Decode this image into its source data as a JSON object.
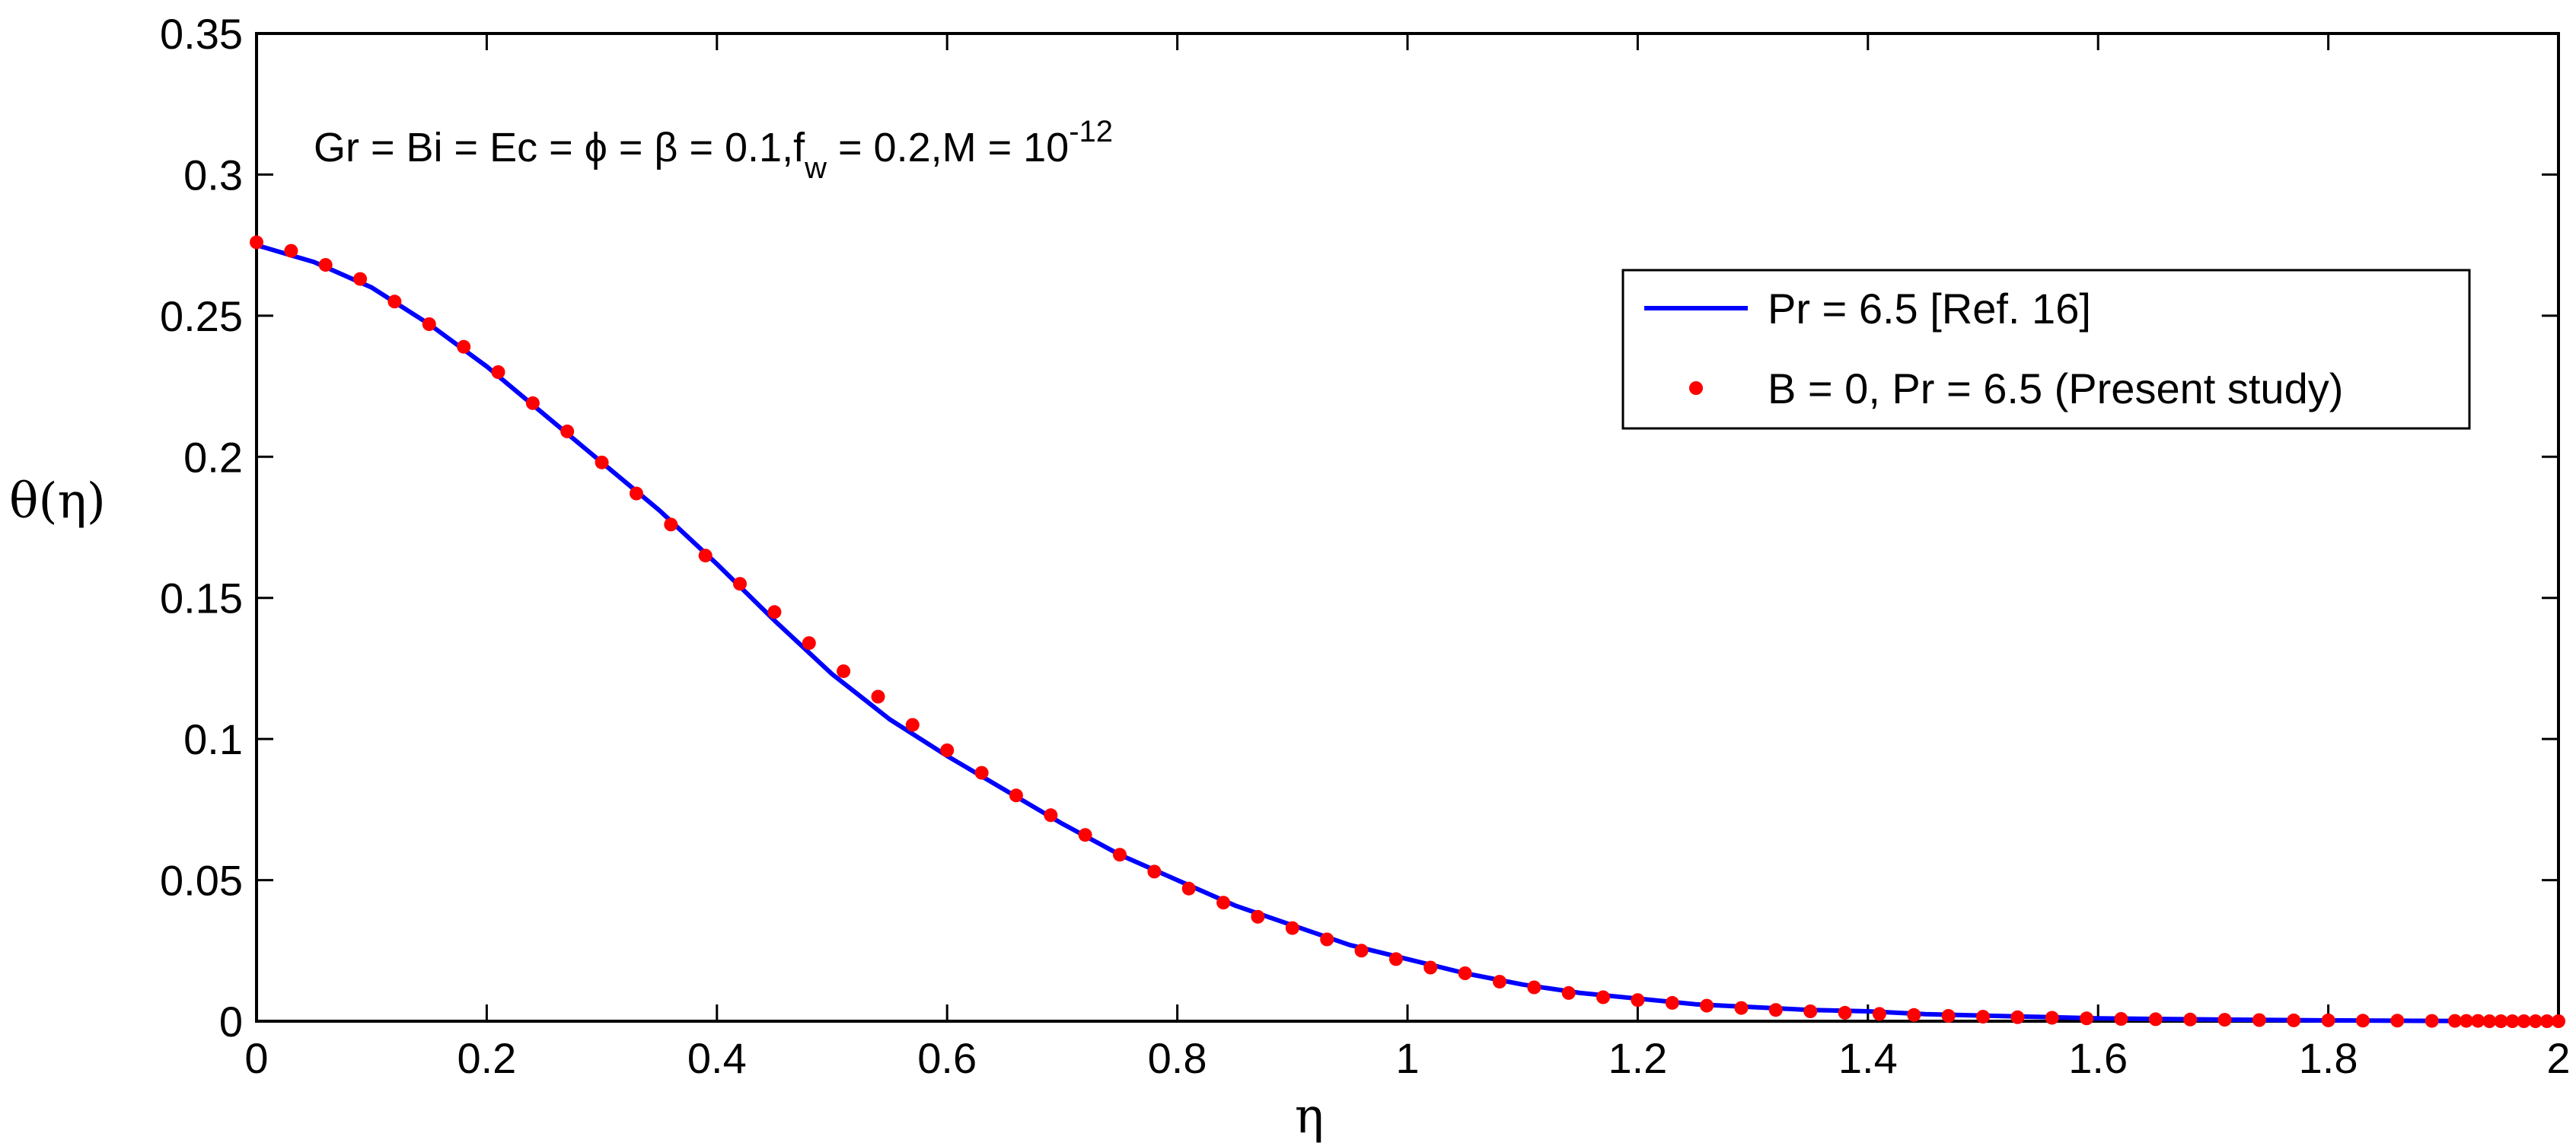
{
  "chart_data": {
    "type": "line",
    "xlabel": "η",
    "ylabel": "θ(η)",
    "xlim": [
      0,
      2
    ],
    "ylim": [
      0,
      0.35
    ],
    "x_ticks": [
      "0",
      "0.2",
      "0.4",
      "0.6",
      "0.8",
      "1",
      "1.2",
      "1.4",
      "1.6",
      "1.8",
      "2"
    ],
    "y_ticks": [
      "0",
      "0.05",
      "0.1",
      "0.15",
      "0.2",
      "0.25",
      "0.3",
      "0.35"
    ],
    "annotation": {
      "text": "Gr = Bi = Ec = ϕ = β = 0.1,f",
      "sub": "w",
      "text2": " = 0.2,M = 10",
      "sup": "-12"
    },
    "legend": {
      "placement": "top-right",
      "entries": [
        "Pr = 6.5 [Ref. 16]",
        "B = 0, Pr = 6.5 (Present study)"
      ]
    },
    "series": [
      {
        "name": "Pr = 6.5 [Ref. 16]",
        "style": "line",
        "color": "#0000ff",
        "x": [
          0,
          0.05,
          0.1,
          0.15,
          0.2,
          0.25,
          0.3,
          0.35,
          0.4,
          0.45,
          0.5,
          0.55,
          0.6,
          0.65,
          0.7,
          0.75,
          0.8,
          0.85,
          0.9,
          0.95,
          1.0,
          1.05,
          1.1,
          1.15,
          1.2,
          1.25,
          1.3,
          1.35,
          1.4,
          1.45,
          1.5,
          1.55,
          1.6,
          1.7,
          1.8,
          1.9,
          2.0
        ],
        "y": [
          0.275,
          0.269,
          0.26,
          0.247,
          0.232,
          0.215,
          0.198,
          0.181,
          0.162,
          0.142,
          0.123,
          0.107,
          0.094,
          0.082,
          0.07,
          0.059,
          0.05,
          0.041,
          0.034,
          0.027,
          0.022,
          0.017,
          0.013,
          0.01,
          0.008,
          0.006,
          0.005,
          0.004,
          0.0035,
          0.0025,
          0.002,
          0.0015,
          0.001,
          0.0006,
          0.0003,
          0.0001,
          0
        ]
      },
      {
        "name": "B = 0, Pr = 6.5 (Present study)",
        "style": "markers",
        "color": "#ff0000",
        "x": [
          0,
          0.03,
          0.06,
          0.09,
          0.12,
          0.15,
          0.18,
          0.21,
          0.24,
          0.27,
          0.3,
          0.33,
          0.36,
          0.39,
          0.42,
          0.45,
          0.48,
          0.51,
          0.54,
          0.57,
          0.6,
          0.63,
          0.66,
          0.69,
          0.72,
          0.75,
          0.78,
          0.81,
          0.84,
          0.87,
          0.9,
          0.93,
          0.96,
          0.99,
          1.02,
          1.05,
          1.08,
          1.11,
          1.14,
          1.17,
          1.2,
          1.23,
          1.26,
          1.29,
          1.32,
          1.35,
          1.38,
          1.41,
          1.44,
          1.47,
          1.5,
          1.53,
          1.56,
          1.59,
          1.62,
          1.65,
          1.68,
          1.71,
          1.74,
          1.77,
          1.8,
          1.83,
          1.86,
          1.89,
          1.91,
          1.92,
          1.93,
          1.94,
          1.95,
          1.96,
          1.97,
          1.98,
          1.99,
          2.0
        ],
        "y": [
          0.276,
          0.273,
          0.268,
          0.263,
          0.255,
          0.247,
          0.239,
          0.23,
          0.219,
          0.209,
          0.198,
          0.187,
          0.176,
          0.165,
          0.155,
          0.145,
          0.134,
          0.124,
          0.115,
          0.105,
          0.096,
          0.088,
          0.08,
          0.073,
          0.066,
          0.059,
          0.053,
          0.047,
          0.042,
          0.037,
          0.033,
          0.029,
          0.025,
          0.022,
          0.019,
          0.017,
          0.014,
          0.012,
          0.01,
          0.0085,
          0.0075,
          0.0065,
          0.0055,
          0.0047,
          0.004,
          0.0035,
          0.003,
          0.0026,
          0.0022,
          0.0019,
          0.0016,
          0.0014,
          0.0012,
          0.001,
          0.0008,
          0.0007,
          0.0006,
          0.0005,
          0.0004,
          0.0003,
          0.0003,
          0.0002,
          0.0002,
          0.0001,
          0.0001,
          0.0001,
          0.0001,
          0,
          0,
          0,
          0,
          0,
          0,
          0
        ]
      }
    ]
  }
}
